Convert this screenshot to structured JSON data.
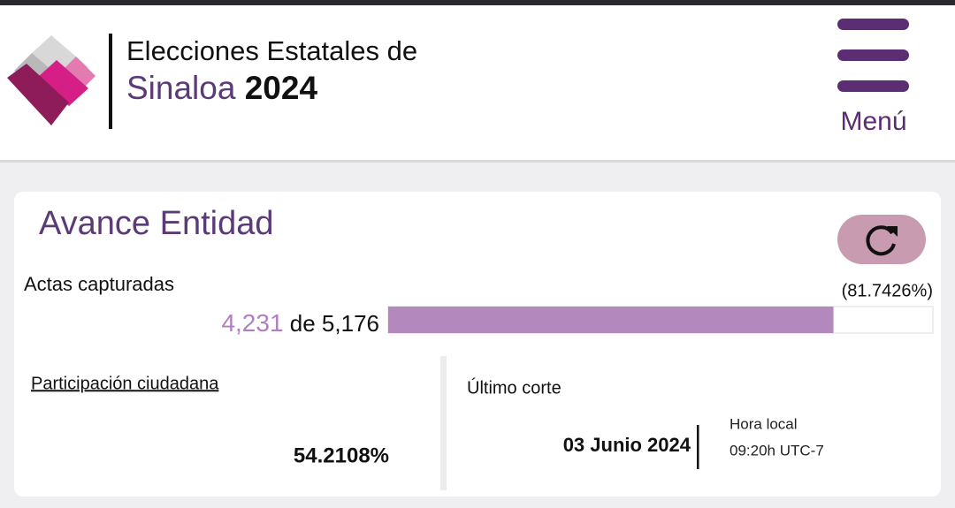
{
  "header": {
    "title_line1": "Elecciones Estatales de",
    "title_state": "Sinaloa",
    "title_year": "2024",
    "menu_label": "Menú"
  },
  "card": {
    "title": "Avance Entidad",
    "actas": {
      "label": "Actas capturadas",
      "captured": "4,231",
      "of": "de",
      "total": "5,176",
      "percent": {
        "value": 81.7426,
        "label": "(81.7426%)"
      }
    },
    "participation": {
      "label": "Participación ciudadana",
      "value": "54.2108%"
    },
    "last_cut": {
      "label": "Último corte",
      "date": "03 Junio 2024",
      "time_label": "Hora local",
      "time": "09:20h UTC-7"
    }
  }
}
